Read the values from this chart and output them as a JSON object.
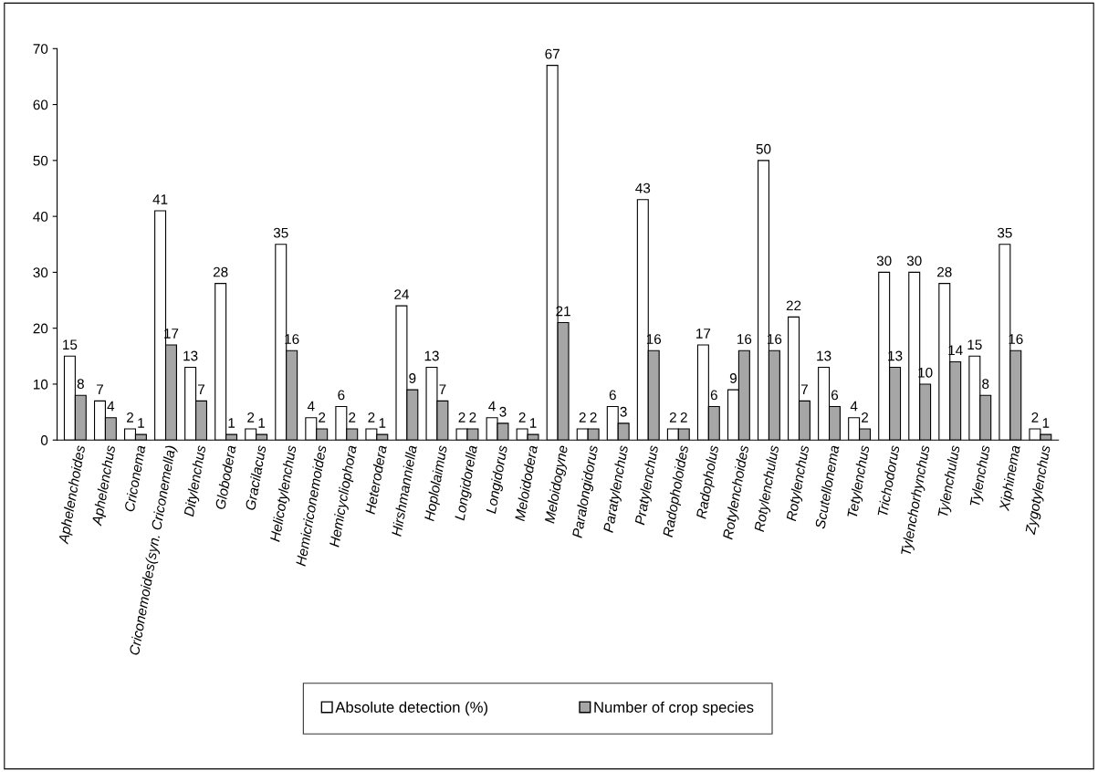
{
  "chart_data": {
    "type": "bar",
    "categories": [
      "Aphelenchoides",
      "Aphelenchus",
      "Criconema",
      "Criconemoides(syn. Criconemella)",
      "Ditylenchus",
      "Globodera",
      "Gracilacus",
      "Helicotylenchus",
      "Hemicriconemoides",
      "Hemicycliophora",
      "Heterodera",
      "Hirshmanniella",
      "Hoplolaimus",
      "Longidorella",
      "Longidorus",
      "Meloidodera",
      "Meloidogyne",
      "Paralongidorus",
      "Paratylenchus",
      "Pratylenchus",
      "Radopholoides",
      "Radopholus",
      "Rotylenchoides",
      "Rotylenchulus",
      "Rotylenchus",
      "Scutellonema",
      "Tetylenchus",
      "Trichodorus",
      "Tylenchorhynchus",
      "Tylenchulus",
      "Tylenchus",
      "Xiphinema",
      "Zygotylenchus"
    ],
    "series": [
      {
        "name": "Absolute detection (%)",
        "color": "#ffffff",
        "values": [
          15,
          7,
          2,
          41,
          13,
          28,
          2,
          35,
          4,
          6,
          2,
          24,
          13,
          2,
          4,
          2,
          67,
          2,
          6,
          43,
          2,
          17,
          9,
          50,
          22,
          13,
          4,
          30,
          30,
          28,
          15,
          35,
          2
        ]
      },
      {
        "name": "Number of crop species",
        "color": "#a6a6a6",
        "values": [
          8,
          4,
          1,
          17,
          7,
          1,
          1,
          16,
          2,
          2,
          1,
          9,
          7,
          2,
          3,
          1,
          21,
          2,
          3,
          16,
          2,
          6,
          16,
          16,
          7,
          6,
          2,
          13,
          10,
          14,
          8,
          16,
          1
        ]
      }
    ],
    "ylim": [
      0,
      70
    ],
    "yticks": [
      0,
      10,
      20,
      30,
      40,
      50,
      60,
      70
    ],
    "data_labels": true,
    "legend": "bottom",
    "grid": false
  }
}
